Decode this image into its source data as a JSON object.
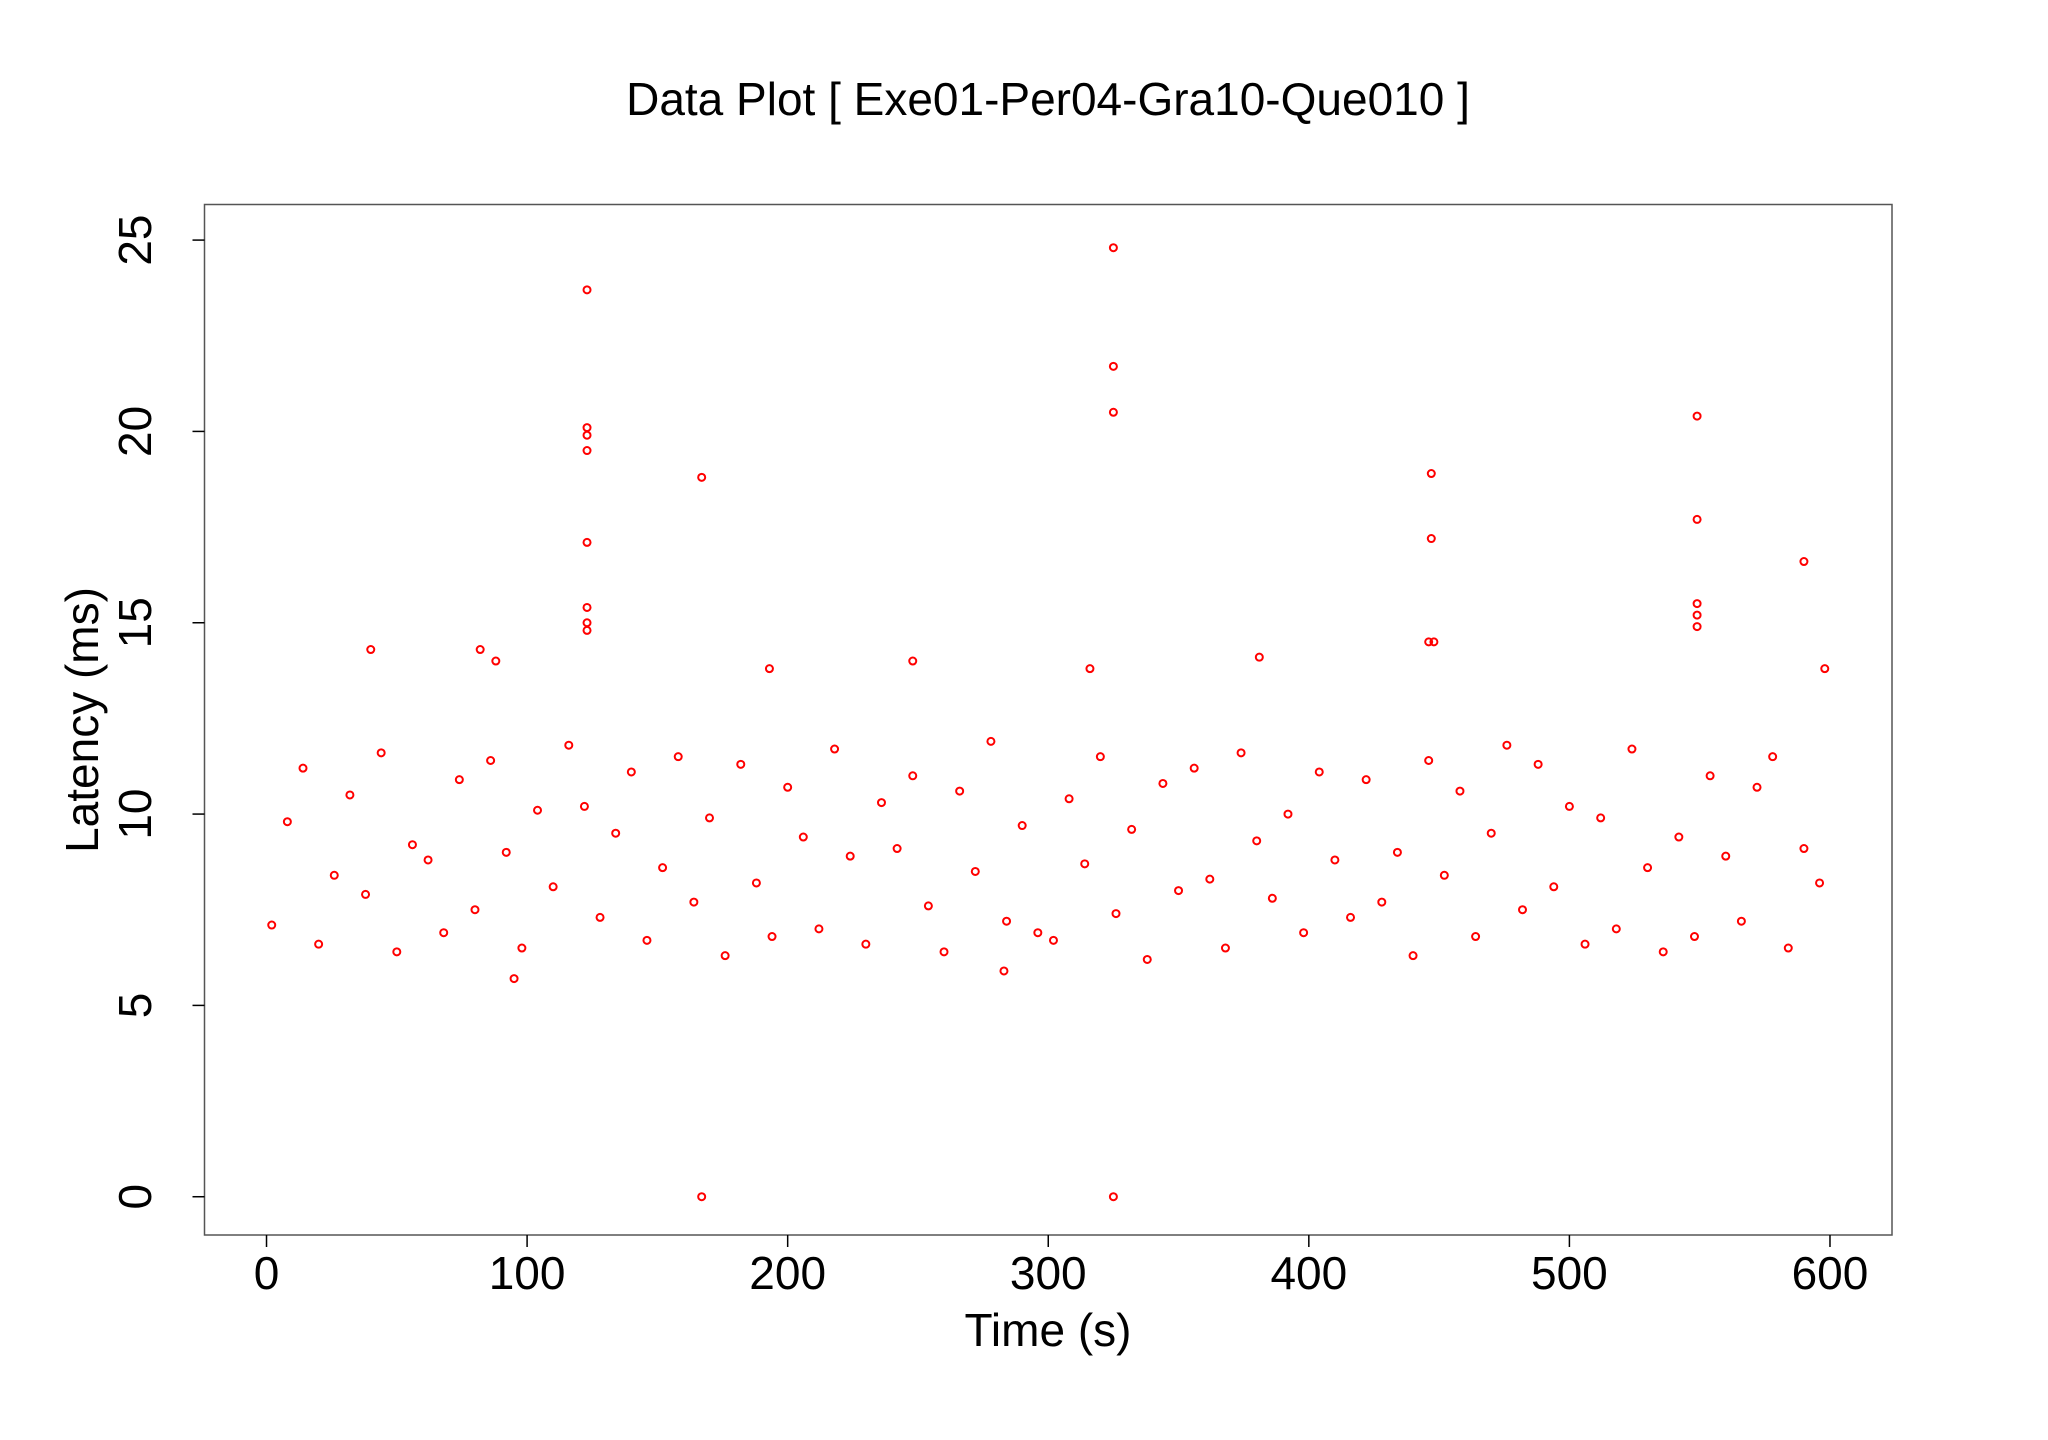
{
  "chart_data": {
    "type": "scatter",
    "title": "Data Plot [ Exe01-Per04-Gra10-Que010 ]",
    "x_label": "Time (s)",
    "y_label": "Latency (ms)",
    "xlim": [
      -23.8,
      623.8
    ],
    "ylim": [
      -1.0,
      25.93
    ],
    "xticks": [
      0,
      100,
      200,
      300,
      400,
      500,
      600
    ],
    "yticks": [
      0,
      5,
      10,
      15,
      20,
      25
    ],
    "x": [
      2,
      8,
      14,
      20,
      26,
      32,
      38,
      44,
      50,
      56,
      62,
      68,
      74,
      80,
      86,
      92,
      98,
      104,
      110,
      116,
      122,
      128,
      134,
      140,
      146,
      152,
      158,
      164,
      170,
      176,
      182,
      188,
      194,
      200,
      206,
      212,
      218,
      224,
      230,
      236,
      242,
      248,
      254,
      260,
      266,
      272,
      278,
      284,
      290,
      296,
      302,
      308,
      314,
      320,
      326,
      332,
      338,
      344,
      350,
      356,
      362,
      368,
      374,
      380,
      386,
      392,
      398,
      404,
      410,
      416,
      422,
      428,
      434,
      440,
      446,
      452,
      458,
      464,
      470,
      476,
      482,
      488,
      494,
      500,
      506,
      512,
      518,
      524,
      530,
      536,
      542,
      548,
      554,
      560,
      566,
      572,
      578,
      584,
      590,
      596,
      123,
      123,
      123,
      123,
      123,
      123,
      123,
      123,
      167,
      167,
      325,
      325,
      325,
      325,
      447,
      447,
      446,
      448,
      549,
      549,
      549,
      549,
      549,
      590,
      40,
      82,
      88,
      193,
      248,
      381,
      95,
      283,
      598,
      316
    ],
    "series": [
      {
        "color": "#ff0000",
        "values": [
          7.1,
          9.8,
          11.2,
          6.6,
          8.4,
          10.5,
          7.9,
          11.6,
          6.4,
          9.2,
          8.8,
          6.9,
          10.9,
          7.5,
          11.4,
          9.0,
          6.5,
          10.1,
          8.1,
          11.8,
          10.2,
          7.3,
          9.5,
          11.1,
          6.7,
          8.6,
          11.5,
          7.7,
          9.9,
          6.3,
          11.3,
          8.2,
          6.8,
          10.7,
          9.4,
          7.0,
          11.7,
          8.9,
          6.6,
          10.3,
          9.1,
          11.0,
          7.6,
          6.4,
          10.6,
          8.5,
          11.9,
          7.2,
          9.7,
          6.9,
          6.7,
          10.4,
          8.7,
          11.5,
          7.4,
          9.6,
          6.2,
          10.8,
          8.0,
          11.2,
          8.3,
          6.5,
          11.6,
          9.3,
          7.8,
          10.0,
          6.9,
          11.1,
          8.8,
          7.3,
          10.9,
          7.7,
          9.0,
          6.3,
          11.4,
          8.4,
          10.6,
          6.8,
          9.5,
          11.8,
          7.5,
          11.3,
          8.1,
          10.2,
          6.6,
          9.9,
          7.0,
          11.7,
          8.6,
          6.4,
          9.4,
          6.8,
          11.0,
          8.9,
          7.2,
          10.7,
          11.5,
          6.5,
          9.1,
          8.2,
          23.7,
          20.1,
          19.9,
          19.5,
          17.1,
          15.4,
          15.0,
          14.8,
          18.8,
          0,
          24.8,
          21.7,
          20.5,
          0,
          18.9,
          17.2,
          14.5,
          14.5,
          20.4,
          17.7,
          15.5,
          15.2,
          14.9,
          16.6,
          14.3,
          14.3,
          14.0,
          13.8,
          14.0,
          14.1,
          5.7,
          5.9,
          13.8,
          13.8
        ]
      }
    ]
  }
}
